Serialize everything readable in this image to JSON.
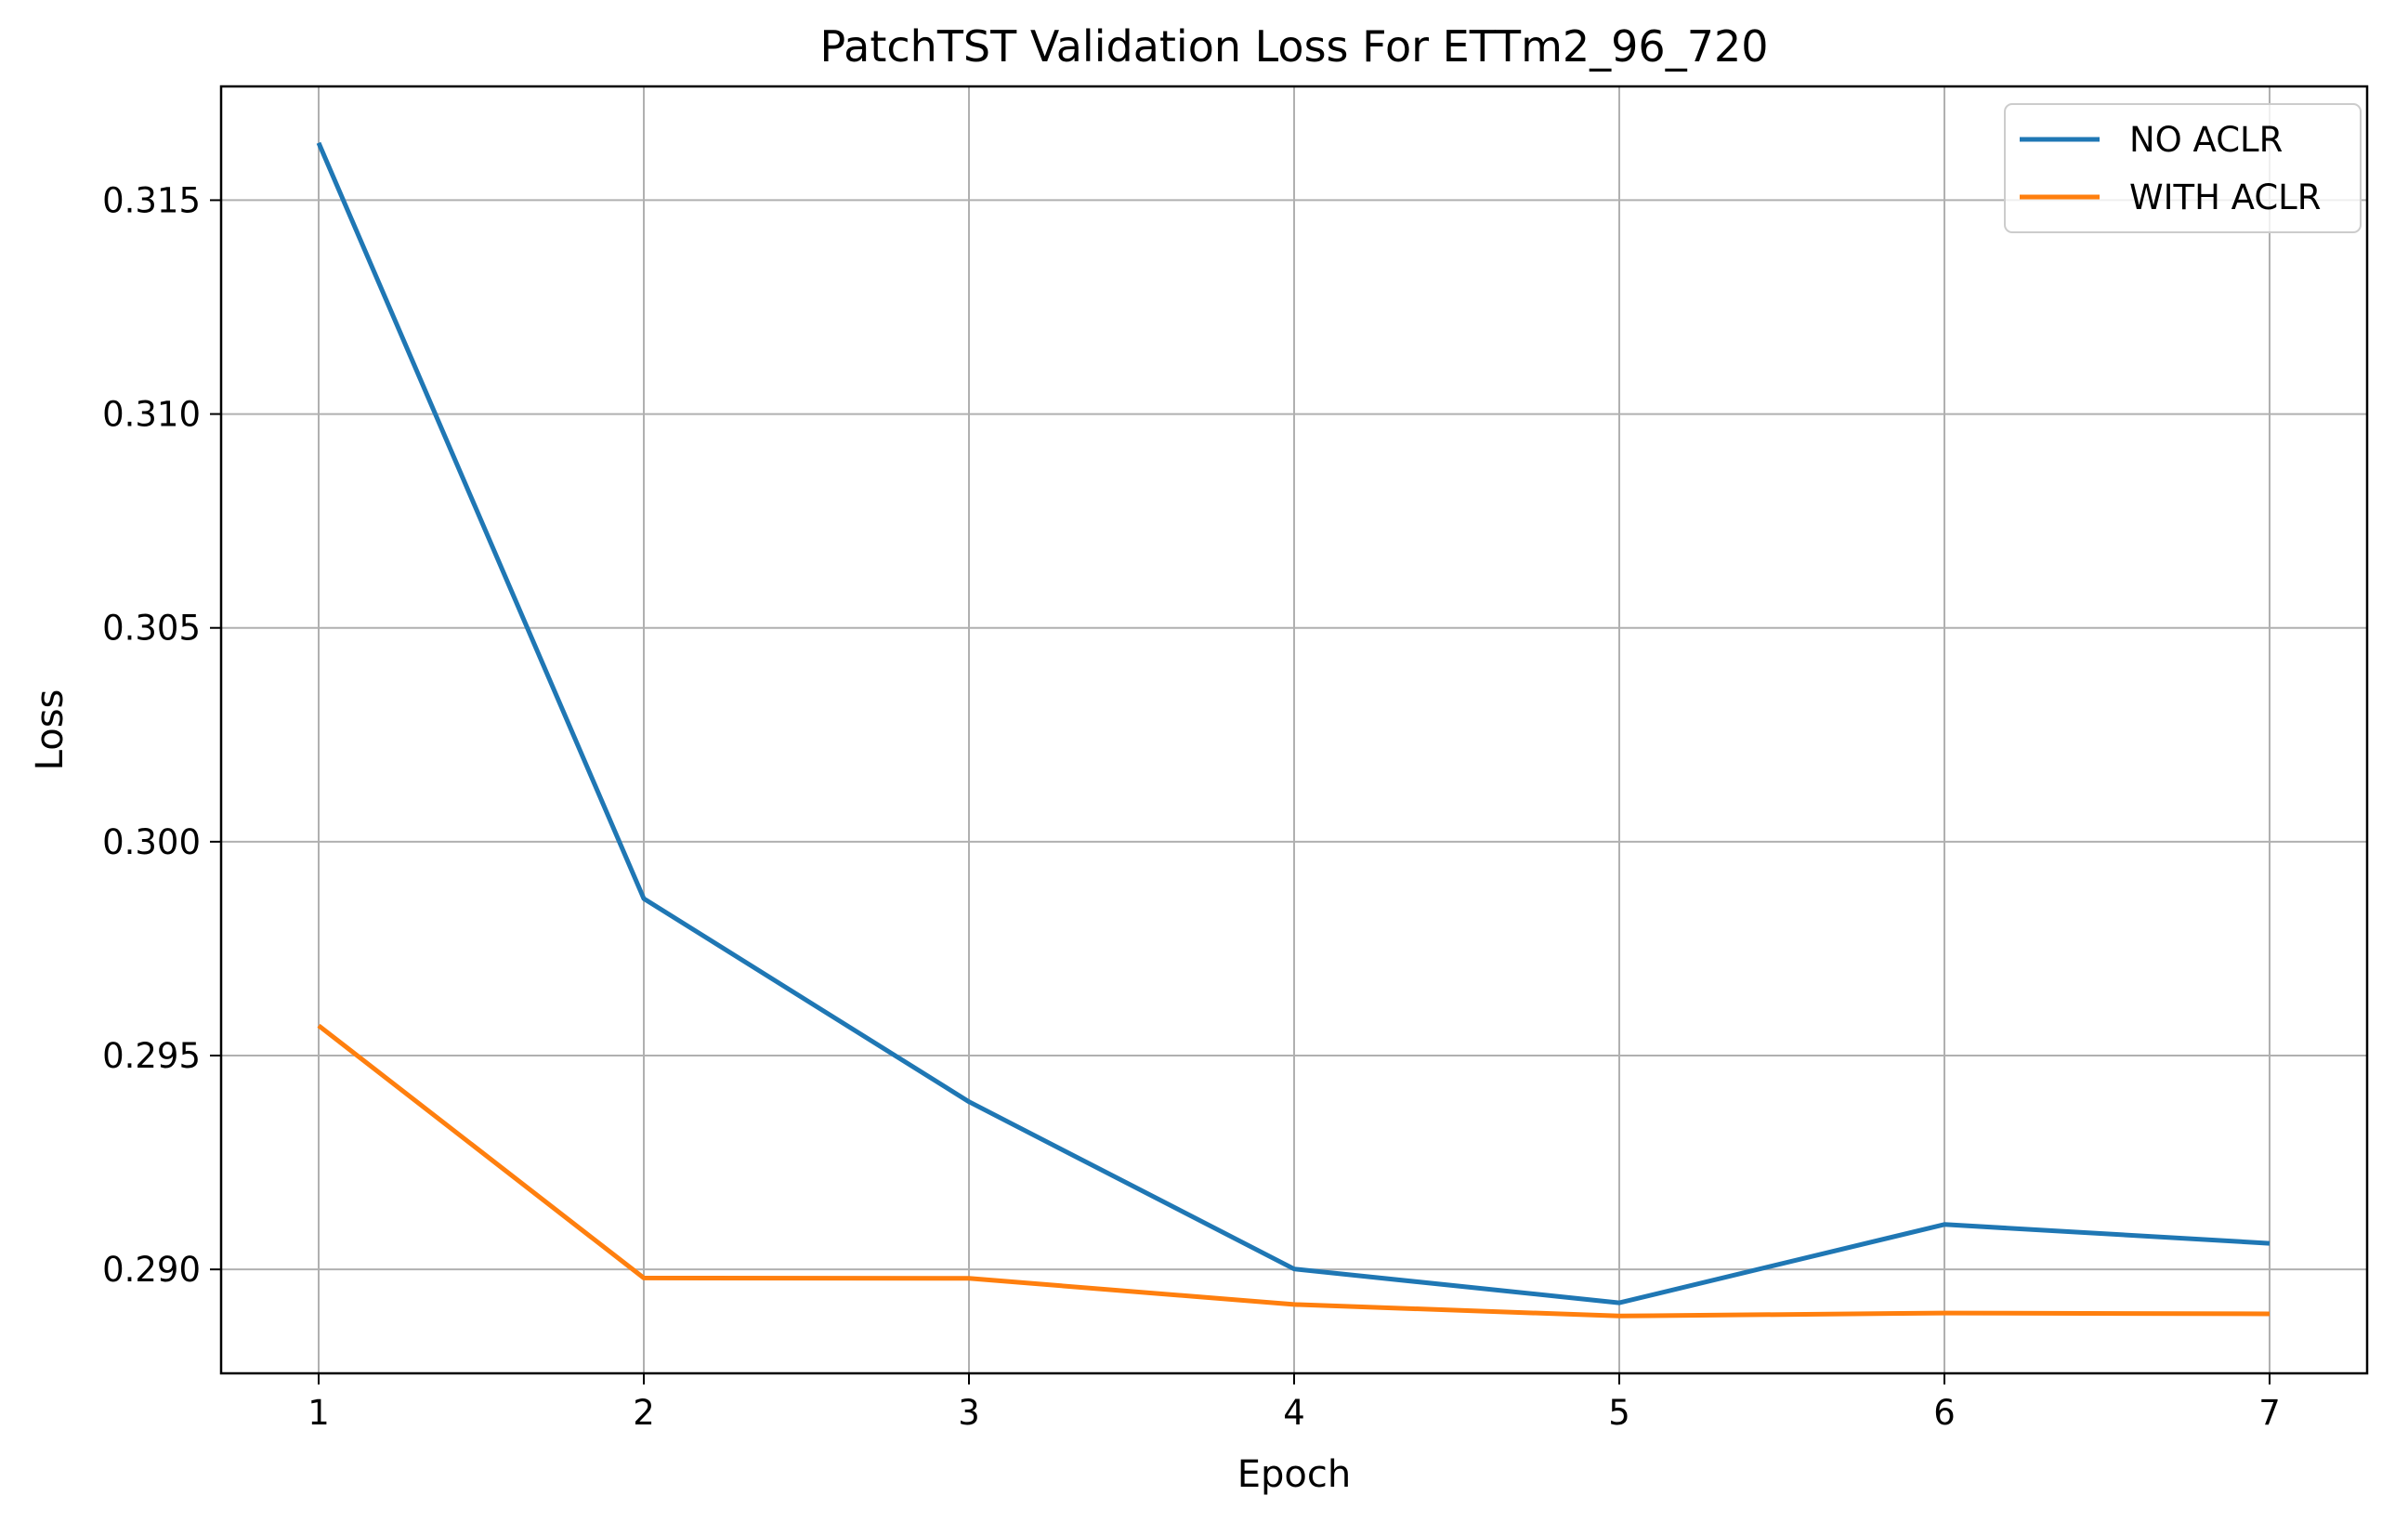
{
  "chart_data": {
    "type": "line",
    "title": "PatchTST Validation Loss For ETTm2_96_720",
    "xlabel": "Epoch",
    "ylabel": "Loss",
    "x": [
      1,
      2,
      3,
      4,
      5,
      6,
      7
    ],
    "x_ticks": [
      "1",
      "2",
      "3",
      "4",
      "5",
      "6",
      "7"
    ],
    "xlim": [
      0.7,
      7.3
    ],
    "ylim": [
      0.28757,
      0.31766
    ],
    "y_ticks": [
      "0.290",
      "0.295",
      "0.300",
      "0.305",
      "0.310",
      "0.315"
    ],
    "y_tick_values": [
      0.29,
      0.295,
      0.3,
      0.305,
      0.31,
      0.315
    ],
    "grid": true,
    "legend_position": "top-right",
    "series": [
      {
        "name": "NO ACLR",
        "color": "#1f77b4",
        "values": [
          0.31634,
          0.29867,
          0.29392,
          0.29001,
          0.28922,
          0.29105,
          0.29061
        ]
      },
      {
        "name": "WITH ACLR",
        "color": "#ff7f0e",
        "values": [
          0.2957,
          0.2898,
          0.28979,
          0.28918,
          0.28891,
          0.28898,
          0.28896
        ]
      }
    ]
  }
}
